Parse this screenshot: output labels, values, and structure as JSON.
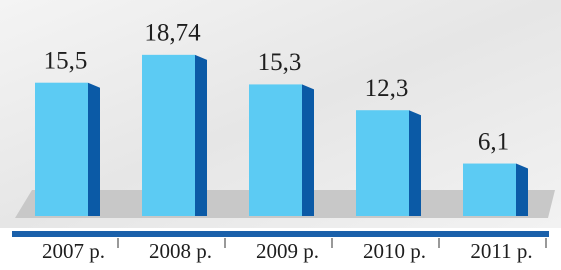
{
  "chart_data": {
    "type": "bar",
    "categories": [
      "2007 р.",
      "2008 р.",
      "2009 р.",
      "2010 р.",
      "2011 р."
    ],
    "values": [
      15.5,
      18.74,
      15.3,
      12.3,
      6.1
    ],
    "value_labels": [
      "15,5",
      "18,74",
      "15,3",
      "12,3",
      "6,1"
    ],
    "color": "#5ccbf3"
  }
}
